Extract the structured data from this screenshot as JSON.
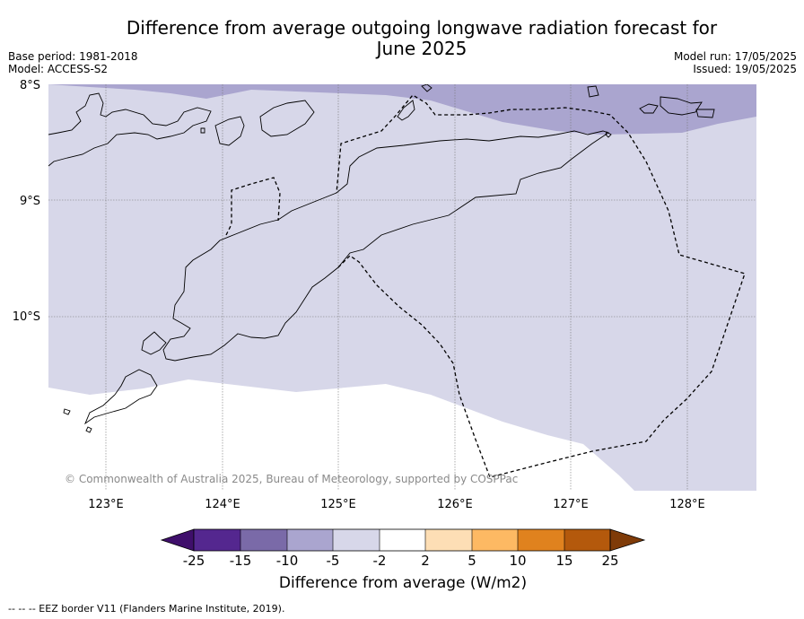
{
  "title_line1": "Difference from average outgoing longwave radiation forecast for",
  "title_line2": "June 2025",
  "base_period": "Base period: 1981-2018",
  "model": "Model: ACCESS-S2",
  "model_run": "Model run: 17/05/2025",
  "issued": "Issued: 19/05/2025",
  "map": {
    "lat_labels": [
      "8°S",
      "9°S",
      "10°S"
    ],
    "lon_labels": [
      "123°E",
      "124°E",
      "125°E",
      "126°E",
      "127°E",
      "128°E"
    ],
    "copyright": "© Commonwealth of Australia 2025, Bureau of Meteorology, supported by COSPPac"
  },
  "colorbar": {
    "tick_labels": [
      "-25",
      "-15",
      "-10",
      "-5",
      "-2",
      "2",
      "5",
      "10",
      "15",
      "25"
    ],
    "colors": [
      "#3f0f6b",
      "#54278f",
      "#7a6aa8",
      "#aaa5cf",
      "#d7d7e9",
      "#ffffff",
      "#fddeb5",
      "#fdb963",
      "#e0821e",
      "#b4590c",
      "#7f3b08"
    ],
    "label": "Difference from average (W/m2)"
  },
  "footnote": "-- -- -- EEZ border V11 (Flanders Marine Institute, 2019)."
}
